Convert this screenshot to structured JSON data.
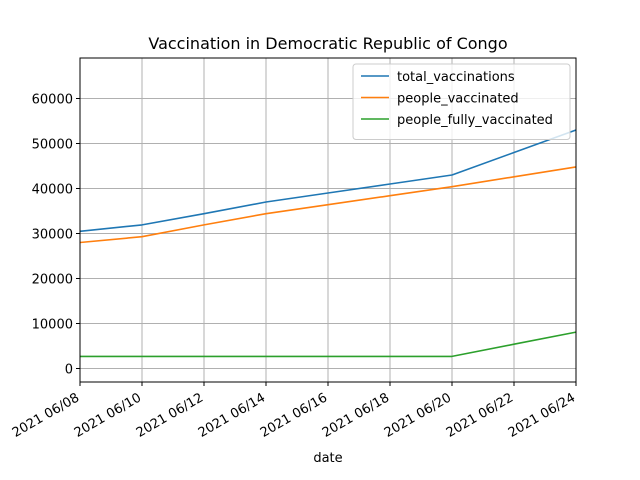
{
  "chart_data": {
    "type": "line",
    "title": "Vaccination in Democratic Republic of Congo",
    "xlabel": "date",
    "ylabel": "",
    "x": [
      "2021 06/08",
      "2021 06/10",
      "2021 06/12",
      "2021 06/14",
      "2021 06/16",
      "2021 06/18",
      "2021 06/20",
      "2021 06/22",
      "2021 06/24"
    ],
    "x_ticks": [
      "2021 06/08",
      "2021 06/10",
      "2021 06/12",
      "2021 06/14",
      "2021 06/16",
      "2021 06/18",
      "2021 06/20",
      "2021 06/22",
      "2021 06/24"
    ],
    "y_ticks": [
      0,
      10000,
      20000,
      30000,
      40000,
      50000,
      60000
    ],
    "ylim": [
      -3000,
      69000
    ],
    "grid": true,
    "legend_position": "top-right",
    "series": [
      {
        "name": "total_vaccinations",
        "color": "#1f77b4",
        "values": [
          30500,
          31900,
          34400,
          37000,
          39000,
          41000,
          43000,
          48000,
          53000
        ]
      },
      {
        "name": "people_vaccinated",
        "color": "#ff7f0e",
        "values": [
          28000,
          29300,
          31900,
          34400,
          36400,
          38400,
          40400,
          42600,
          44800
        ]
      },
      {
        "name": "people_fully_vaccinated",
        "color": "#2ca02c",
        "values": [
          2700,
          2700,
          2700,
          2700,
          2700,
          2700,
          2700,
          5400,
          8100
        ]
      }
    ]
  }
}
